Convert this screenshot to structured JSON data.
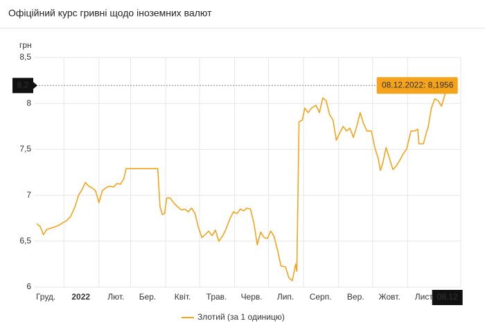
{
  "chart_data": {
    "type": "line",
    "title": "Офіційний курс гривні щодо іноземних валют",
    "y_label": "грн",
    "x": [
      "2021-12-08",
      "2021-12-11",
      "2021-12-14",
      "2021-12-17",
      "2021-12-20",
      "2021-12-23",
      "2021-12-27",
      "2021-12-31",
      "2022-01-03",
      "2022-01-07",
      "2022-01-11",
      "2022-01-14",
      "2022-01-17",
      "2022-01-20",
      "2022-01-23",
      "2022-01-26",
      "2022-01-29",
      "2022-02-01",
      "2022-02-04",
      "2022-02-07",
      "2022-02-10",
      "2022-02-14",
      "2022-02-17",
      "2022-02-20",
      "2022-02-23",
      "2022-02-25",
      "2022-03-25",
      "2022-03-27",
      "2022-03-29",
      "2022-03-31",
      "2022-04-02",
      "2022-04-05",
      "2022-04-08",
      "2022-04-12",
      "2022-04-15",
      "2022-04-18",
      "2022-04-21",
      "2022-04-24",
      "2022-04-27",
      "2022-04-30",
      "2022-05-03",
      "2022-05-06",
      "2022-05-09",
      "2022-05-12",
      "2022-05-15",
      "2022-05-18",
      "2022-05-21",
      "2022-05-24",
      "2022-05-28",
      "2022-05-31",
      "2022-06-03",
      "2022-06-06",
      "2022-06-09",
      "2022-06-12",
      "2022-06-15",
      "2022-06-18",
      "2022-06-21",
      "2022-06-24",
      "2022-06-27",
      "2022-06-30",
      "2022-07-03",
      "2022-07-06",
      "2022-07-09",
      "2022-07-12",
      "2022-07-16",
      "2022-07-19",
      "2022-07-22",
      "2022-07-25",
      "2022-07-26",
      "2022-07-28",
      "2022-07-31",
      "2022-08-02",
      "2022-08-05",
      "2022-08-08",
      "2022-08-12",
      "2022-08-15",
      "2022-08-18",
      "2022-08-21",
      "2022-08-24",
      "2022-08-27",
      "2022-08-30",
      "2022-09-02",
      "2022-09-05",
      "2022-09-08",
      "2022-09-11",
      "2022-09-14",
      "2022-09-17",
      "2022-09-20",
      "2022-09-23",
      "2022-09-26",
      "2022-09-30",
      "2022-10-03",
      "2022-10-06",
      "2022-10-08",
      "2022-10-10",
      "2022-10-13",
      "2022-10-16",
      "2022-10-19",
      "2022-10-22",
      "2022-10-25",
      "2022-10-28",
      "2022-10-31",
      "2022-11-04",
      "2022-11-07",
      "2022-11-10",
      "2022-11-11",
      "2022-11-15",
      "2022-11-18",
      "2022-11-19",
      "2022-11-22",
      "2022-11-25",
      "2022-11-28",
      "2022-12-01",
      "2022-12-04",
      "2022-12-08"
    ],
    "series": [
      {
        "name": "Злотий (за 1 одиницю)",
        "color": "#f5a31a",
        "values": [
          6.69,
          6.66,
          6.57,
          6.63,
          6.64,
          6.65,
          6.67,
          6.7,
          6.72,
          6.77,
          6.88,
          7.0,
          7.06,
          7.14,
          7.1,
          7.08,
          7.05,
          6.92,
          7.05,
          7.08,
          7.1,
          7.09,
          7.13,
          7.12,
          7.18,
          7.29,
          7.29,
          6.88,
          6.79,
          6.8,
          6.97,
          6.97,
          6.92,
          6.87,
          6.84,
          6.85,
          6.82,
          6.86,
          6.8,
          6.65,
          6.54,
          6.57,
          6.61,
          6.56,
          6.62,
          6.5,
          6.55,
          6.62,
          6.75,
          6.82,
          6.8,
          6.85,
          6.83,
          6.86,
          6.85,
          6.7,
          6.46,
          6.6,
          6.54,
          6.53,
          6.61,
          6.55,
          6.4,
          6.23,
          6.22,
          6.1,
          6.07,
          6.25,
          6.17,
          7.8,
          7.82,
          7.95,
          7.9,
          7.95,
          7.98,
          7.9,
          8.06,
          8.03,
          7.88,
          7.82,
          7.6,
          7.68,
          7.75,
          7.7,
          7.73,
          7.63,
          7.75,
          7.9,
          7.78,
          7.7,
          7.7,
          7.52,
          7.4,
          7.27,
          7.35,
          7.52,
          7.4,
          7.28,
          7.32,
          7.38,
          7.45,
          7.5,
          7.7,
          7.7,
          7.72,
          7.56,
          7.56,
          7.7,
          7.73,
          7.95,
          8.05,
          8.03,
          7.97,
          8.1,
          8.1956
        ]
      }
    ],
    "xlim": [
      "2021-11-30",
      "2022-12-18"
    ],
    "xticks": [
      {
        "value": "2021-12-01",
        "label": "Груд."
      },
      {
        "value": "2022-01-01",
        "label": "2022"
      },
      {
        "value": "2022-02-01",
        "label": "Лют."
      },
      {
        "value": "2022-03-01",
        "label": "Бер."
      },
      {
        "value": "2022-04-01",
        "label": "Квіт."
      },
      {
        "value": "2022-05-01",
        "label": "Трав."
      },
      {
        "value": "2022-06-01",
        "label": "Черв."
      },
      {
        "value": "2022-07-01",
        "label": "Лип."
      },
      {
        "value": "2022-08-01",
        "label": "Серп."
      },
      {
        "value": "2022-09-01",
        "label": "Вер."
      },
      {
        "value": "2022-10-01",
        "label": "Жовт."
      },
      {
        "value": "2022-11-01",
        "label": "Лист."
      }
    ],
    "ylim": [
      6,
      8.5
    ],
    "yticks": [
      6,
      {
        "value": 6.5,
        "label": "6,5"
      },
      7,
      {
        "value": 7.5,
        "label": "7,5"
      },
      8,
      {
        "value": 8.5,
        "label": "8,5"
      }
    ],
    "grid": true,
    "legend": "bottom",
    "tooltip": {
      "label": "08.12.2022: 8,1956",
      "y_label": "8,2",
      "x_label": "08.12"
    }
  }
}
